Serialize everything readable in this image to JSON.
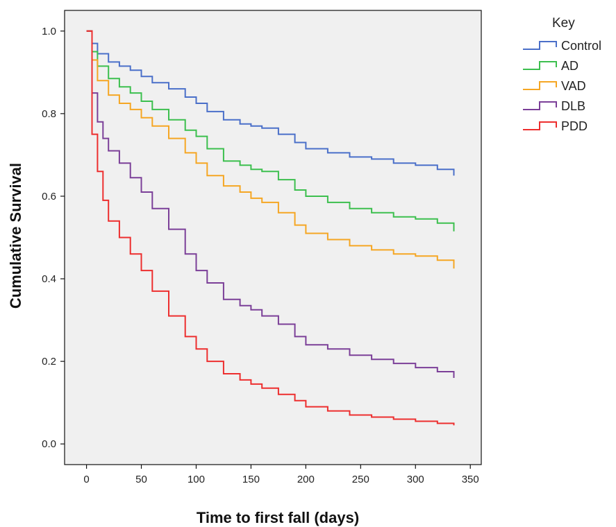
{
  "chart_data": {
    "type": "line",
    "step": true,
    "title": "",
    "xlabel": "Time to first fall (days)",
    "ylabel": "Cumulative Survival",
    "xlim": [
      -20,
      360
    ],
    "ylim": [
      -0.05,
      1.05
    ],
    "xticks": [
      0,
      50,
      100,
      150,
      200,
      250,
      300,
      350
    ],
    "yticks": [
      0.0,
      0.2,
      0.4,
      0.6,
      0.8,
      1.0
    ],
    "xtick_labels": [
      "0",
      "50",
      "100",
      "150",
      "200",
      "250",
      "300",
      "350"
    ],
    "ytick_labels": [
      "0.0",
      "0.2",
      "0.4",
      "0.6",
      "0.8",
      "1.0"
    ],
    "grid": false,
    "legend": {
      "title": "Key",
      "placement": "outside-right"
    },
    "series": [
      {
        "name": "Control",
        "color": "#4a6fc9",
        "x": [
          0,
          5,
          10,
          20,
          30,
          40,
          50,
          60,
          75,
          90,
          100,
          110,
          125,
          140,
          150,
          160,
          175,
          190,
          200,
          220,
          240,
          260,
          280,
          300,
          320,
          335
        ],
        "y": [
          1.0,
          0.97,
          0.945,
          0.925,
          0.915,
          0.905,
          0.89,
          0.875,
          0.86,
          0.84,
          0.825,
          0.805,
          0.785,
          0.775,
          0.77,
          0.765,
          0.75,
          0.73,
          0.715,
          0.705,
          0.695,
          0.69,
          0.68,
          0.675,
          0.665,
          0.65
        ]
      },
      {
        "name": "AD",
        "color": "#3cbf4e",
        "x": [
          0,
          5,
          10,
          20,
          30,
          40,
          50,
          60,
          75,
          90,
          100,
          110,
          125,
          140,
          150,
          160,
          175,
          190,
          200,
          220,
          240,
          260,
          280,
          300,
          320,
          335
        ],
        "y": [
          1.0,
          0.95,
          0.915,
          0.885,
          0.865,
          0.85,
          0.83,
          0.81,
          0.785,
          0.76,
          0.745,
          0.715,
          0.685,
          0.675,
          0.665,
          0.66,
          0.64,
          0.615,
          0.6,
          0.585,
          0.57,
          0.56,
          0.55,
          0.545,
          0.535,
          0.515
        ]
      },
      {
        "name": "VAD",
        "color": "#f5a623",
        "x": [
          0,
          5,
          10,
          20,
          30,
          40,
          50,
          60,
          75,
          90,
          100,
          110,
          125,
          140,
          150,
          160,
          175,
          190,
          200,
          220,
          240,
          260,
          280,
          300,
          320,
          335
        ],
        "y": [
          1.0,
          0.93,
          0.88,
          0.845,
          0.825,
          0.81,
          0.79,
          0.77,
          0.74,
          0.705,
          0.68,
          0.65,
          0.625,
          0.61,
          0.595,
          0.585,
          0.56,
          0.53,
          0.51,
          0.495,
          0.48,
          0.47,
          0.46,
          0.455,
          0.445,
          0.425
        ]
      },
      {
        "name": "DLB",
        "color": "#7b3f98",
        "x": [
          0,
          5,
          10,
          15,
          20,
          30,
          40,
          50,
          60,
          75,
          90,
          100,
          110,
          125,
          140,
          150,
          160,
          175,
          190,
          200,
          220,
          240,
          260,
          280,
          300,
          320,
          335
        ],
        "y": [
          1.0,
          0.85,
          0.78,
          0.74,
          0.71,
          0.68,
          0.645,
          0.61,
          0.57,
          0.52,
          0.46,
          0.42,
          0.39,
          0.35,
          0.335,
          0.325,
          0.31,
          0.29,
          0.26,
          0.24,
          0.23,
          0.215,
          0.205,
          0.195,
          0.185,
          0.175,
          0.16
        ]
      },
      {
        "name": "PDD",
        "color": "#ed2e2e",
        "x": [
          0,
          5,
          10,
          15,
          20,
          30,
          40,
          50,
          60,
          75,
          90,
          100,
          110,
          125,
          140,
          150,
          160,
          175,
          190,
          200,
          220,
          240,
          260,
          280,
          300,
          320,
          335
        ],
        "y": [
          1.0,
          0.75,
          0.66,
          0.59,
          0.54,
          0.5,
          0.46,
          0.42,
          0.37,
          0.31,
          0.26,
          0.23,
          0.2,
          0.17,
          0.155,
          0.145,
          0.135,
          0.12,
          0.105,
          0.09,
          0.08,
          0.07,
          0.065,
          0.06,
          0.055,
          0.05,
          0.045
        ]
      }
    ]
  }
}
